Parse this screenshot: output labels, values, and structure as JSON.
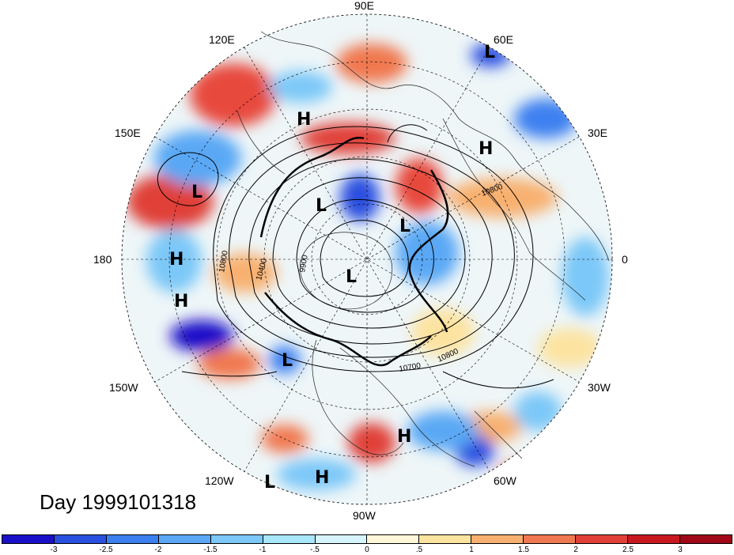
{
  "map": {
    "projection": "polar stereographic, north pole",
    "longitude_labels": [
      "90E",
      "60E",
      "30E",
      "0",
      "30W",
      "60W",
      "90W",
      "120W",
      "150W",
      "180",
      "150E",
      "120E"
    ],
    "pressure_systems": [
      {
        "type": "L",
        "name": "low-60e"
      },
      {
        "type": "H",
        "name": "high-100e"
      },
      {
        "type": "H",
        "name": "high-30e"
      },
      {
        "type": "L",
        "name": "low-160e"
      },
      {
        "type": "L",
        "name": "low-120e-inner"
      },
      {
        "type": "L",
        "name": "low-scandinavia"
      },
      {
        "type": "H",
        "name": "high-180"
      },
      {
        "type": "L",
        "name": "low-pole"
      },
      {
        "type": "H",
        "name": "high-170w"
      },
      {
        "type": "L",
        "name": "low-130w"
      },
      {
        "type": "H",
        "name": "high-atlantic"
      },
      {
        "type": "L",
        "name": "low-110w"
      },
      {
        "type": "H",
        "name": "high-95w"
      }
    ],
    "contour_labels": [
      "10800",
      "10800",
      "10400",
      "9900",
      "10700",
      "10800"
    ],
    "day_label": "Day 1999101318"
  },
  "colorbar": {
    "colors": [
      "#1a10c8",
      "#2a50e0",
      "#3c80f0",
      "#5aa8f5",
      "#7cc8f8",
      "#a8e6fb",
      "#d6f4fb",
      "#fff8d8",
      "#fde3a0",
      "#f8b070",
      "#f07850",
      "#e04038",
      "#c81820",
      "#a00818"
    ],
    "ticks": [
      "-3",
      "-2.5",
      "-2",
      "-1.5",
      "-1",
      "-.5",
      "0",
      ".5",
      "1",
      "1.5",
      "2",
      "2.5",
      "3"
    ]
  }
}
